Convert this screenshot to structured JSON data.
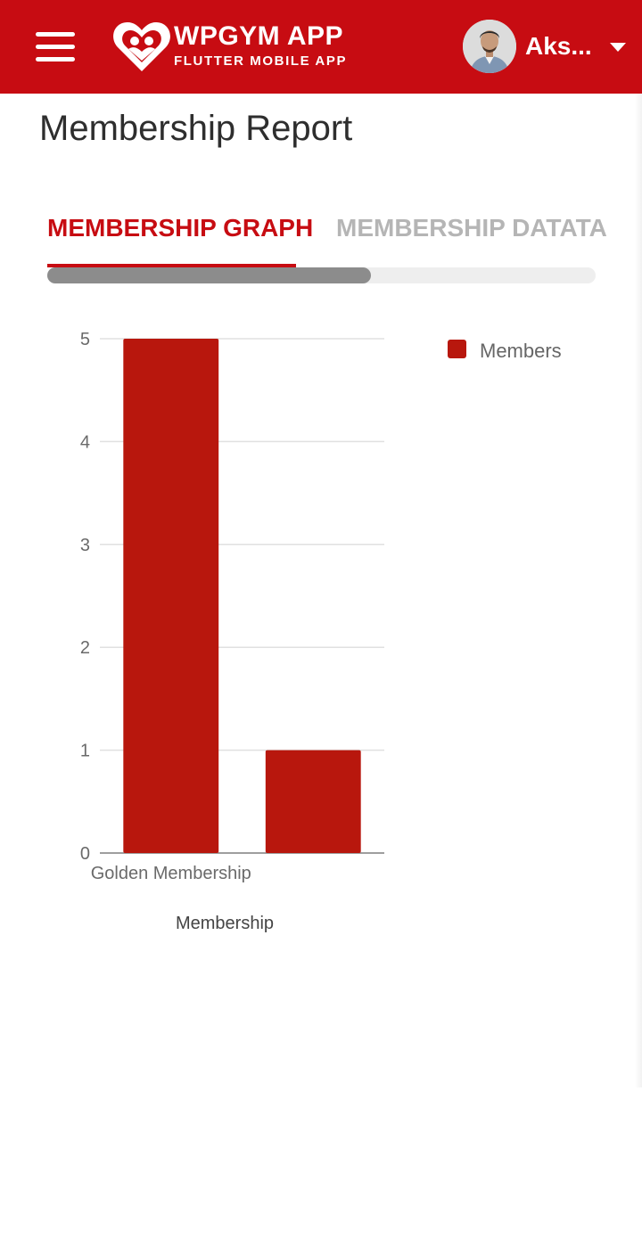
{
  "app": {
    "title": "WPGYM APP",
    "subtitle": "FLUTTER MOBILE APP",
    "user_name": "Aks...",
    "brand_color": "#c70c12"
  },
  "icons": {
    "menu": "hamburger-menu-icon",
    "logo": "heart-people-logo-icon",
    "dropdown": "caret-down-icon"
  },
  "page": {
    "title": "Membership Report"
  },
  "tabs": {
    "items": [
      {
        "label": "MEMBERSHIP GRAPH",
        "active": true
      },
      {
        "label": "MEMBERSHIP DATATA",
        "active": false
      }
    ],
    "scroll_fraction": 0.59
  },
  "chart_data": {
    "type": "bar",
    "categories": [
      "Golden Membership",
      ""
    ],
    "series": [
      {
        "name": "Members",
        "values": [
          5,
          1
        ],
        "color": "#b8170d"
      }
    ],
    "xlabel": "Membership",
    "ylabel": "",
    "ylim": [
      0,
      5
    ],
    "yticks": [
      "0",
      "1",
      "2",
      "3",
      "4",
      "5"
    ],
    "grid": true,
    "legend": "top-right"
  }
}
